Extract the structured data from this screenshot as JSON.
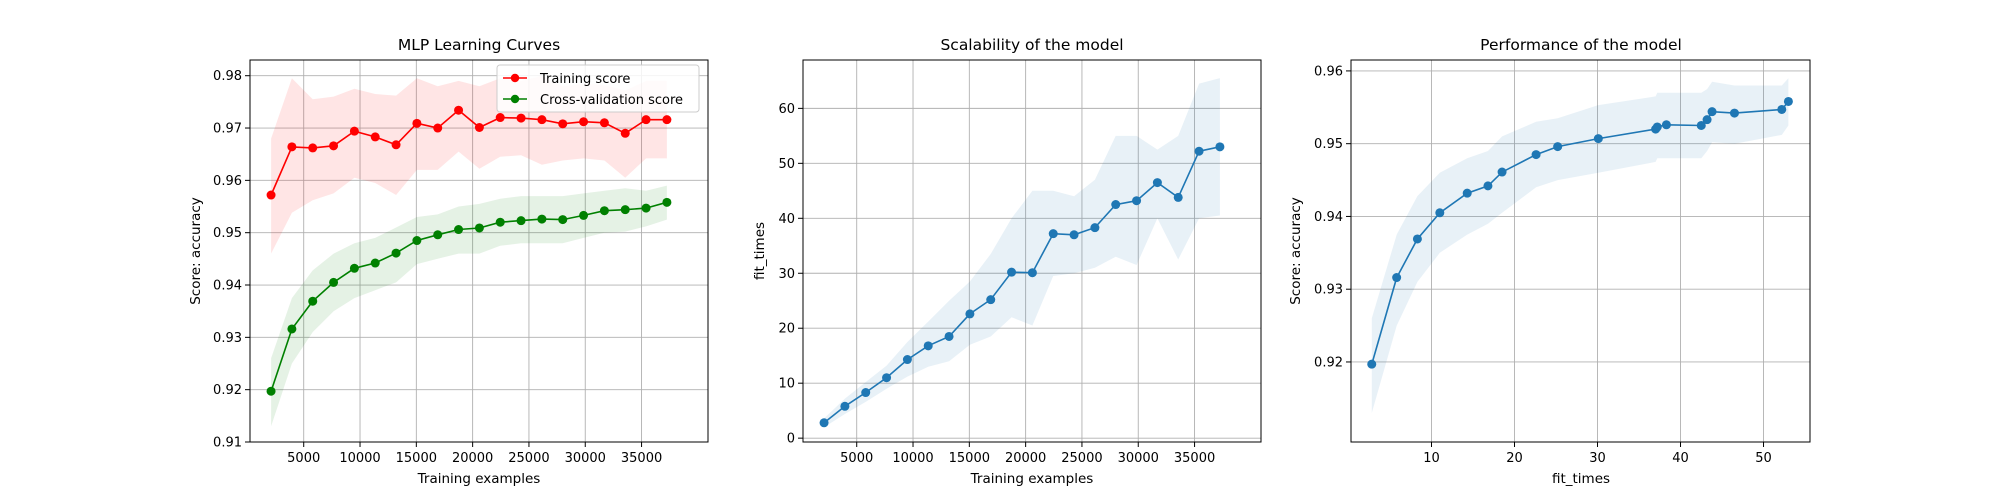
{
  "chart_data": [
    {
      "type": "line",
      "title": "MLP Learning Curves",
      "xlabel": "Training examples",
      "ylabel": "Score: accuracy",
      "xlim": [
        230,
        40900
      ],
      "ylim": [
        0.91,
        0.983
      ],
      "xticks": [
        5000,
        10000,
        15000,
        20000,
        25000,
        30000,
        35000
      ],
      "yticks": [
        0.91,
        0.92,
        0.93,
        0.94,
        0.95,
        0.96,
        0.97,
        0.98
      ],
      "ytick_decimals": 2,
      "grid": true,
      "legend": "top-right",
      "x": [
        2100,
        3950,
        5800,
        7650,
        9500,
        11350,
        13200,
        15050,
        16900,
        18750,
        20600,
        22450,
        24300,
        26150,
        28000,
        29850,
        31700,
        33550,
        35400,
        37250
      ],
      "series": [
        {
          "name": "Training score",
          "color": "#ff0000",
          "values": [
            0.9572,
            0.9664,
            0.9662,
            0.9666,
            0.9694,
            0.9683,
            0.9668,
            0.9709,
            0.97,
            0.9734,
            0.9701,
            0.972,
            0.9719,
            0.9716,
            0.9708,
            0.9712,
            0.971,
            0.969,
            0.9716,
            0.9716
          ],
          "band_upper": [
            0.968,
            0.9795,
            0.9755,
            0.976,
            0.9775,
            0.9765,
            0.9762,
            0.9795,
            0.978,
            0.979,
            0.978,
            0.9795,
            0.979,
            0.98,
            0.978,
            0.9785,
            0.9782,
            0.9772,
            0.979,
            0.979
          ],
          "band_lower": [
            0.946,
            0.9538,
            0.9562,
            0.9575,
            0.9605,
            0.9595,
            0.9572,
            0.962,
            0.962,
            0.9655,
            0.9622,
            0.9645,
            0.9648,
            0.963,
            0.9638,
            0.9642,
            0.9638,
            0.9605,
            0.9642,
            0.9642
          ]
        },
        {
          "name": "Cross-validation score",
          "color": "#008000",
          "values": [
            0.9197,
            0.9316,
            0.9369,
            0.9405,
            0.9432,
            0.9442,
            0.9461,
            0.9485,
            0.9496,
            0.9506,
            0.9509,
            0.952,
            0.9523,
            0.9526,
            0.9525,
            0.9533,
            0.9542,
            0.9544,
            0.9547,
            0.9558
          ],
          "band_upper": [
            0.926,
            0.9375,
            0.9428,
            0.946,
            0.948,
            0.949,
            0.951,
            0.953,
            0.9535,
            0.955,
            0.9555,
            0.9565,
            0.957,
            0.957,
            0.957,
            0.9575,
            0.958,
            0.9585,
            0.958,
            0.959
          ],
          "band_lower": [
            0.913,
            0.925,
            0.931,
            0.935,
            0.9375,
            0.939,
            0.9405,
            0.944,
            0.945,
            0.946,
            0.946,
            0.9475,
            0.948,
            0.948,
            0.948,
            0.949,
            0.95,
            0.9502,
            0.9512,
            0.9525
          ]
        }
      ]
    },
    {
      "type": "line",
      "title": "Scalability of the model",
      "xlabel": "Training examples",
      "ylabel": "fit_times",
      "xlim": [
        230,
        40900
      ],
      "ylim": [
        -0.7,
        68.8
      ],
      "xticks": [
        5000,
        10000,
        15000,
        20000,
        25000,
        30000,
        35000
      ],
      "yticks": [
        0,
        10,
        20,
        30,
        40,
        50,
        60
      ],
      "ytick_decimals": 0,
      "grid": true,
      "x": [
        2100,
        3950,
        5800,
        7650,
        9500,
        11350,
        13200,
        15050,
        16900,
        18750,
        20600,
        22450,
        24300,
        26150,
        28000,
        29850,
        31700,
        33550,
        35400,
        37250
      ],
      "series": [
        {
          "name": "",
          "color": "#1f77b4",
          "values": [
            2.8,
            5.8,
            8.3,
            11.0,
            14.3,
            16.8,
            18.5,
            22.6,
            25.2,
            30.2,
            30.1,
            37.2,
            37.0,
            38.3,
            42.5,
            43.2,
            46.5,
            43.8,
            52.2,
            53.0
          ],
          "band_upper": [
            3.6,
            7.2,
            10.2,
            13.2,
            17.5,
            21.2,
            25.0,
            28.5,
            33.5,
            40.0,
            45.0,
            45.0,
            44.0,
            47.0,
            55.0,
            55.0,
            52.5,
            55.0,
            64.5,
            65.5
          ],
          "band_lower": [
            2.0,
            4.4,
            6.6,
            9.0,
            11.2,
            13.0,
            14.0,
            17.0,
            18.5,
            22.0,
            20.5,
            29.5,
            30.0,
            31.0,
            33.0,
            31.5,
            40.0,
            32.5,
            40.0,
            40.5
          ]
        }
      ]
    },
    {
      "type": "line",
      "title": "Performance of the model",
      "xlabel": "fit_times",
      "ylabel": "Score: accuracy",
      "xlim": [
        0.3,
        55.6
      ],
      "ylim": [
        0.909,
        0.9615
      ],
      "xticks": [
        10,
        20,
        30,
        40,
        50
      ],
      "yticks": [
        0.92,
        0.93,
        0.94,
        0.95,
        0.96
      ],
      "ytick_decimals": 2,
      "grid": true,
      "x": [
        2.8,
        5.8,
        8.3,
        11.0,
        14.3,
        16.8,
        18.5,
        22.6,
        25.2,
        30.1,
        37.0,
        37.2,
        38.3,
        42.5,
        43.2,
        43.8,
        46.5,
        52.2,
        53.0
      ],
      "series": [
        {
          "name": "",
          "color": "#1f77b4",
          "values": [
            0.9197,
            0.9316,
            0.9369,
            0.9405,
            0.9432,
            0.9442,
            0.9461,
            0.9485,
            0.9496,
            0.9507,
            0.952,
            0.9523,
            0.9526,
            0.9525,
            0.9533,
            0.9544,
            0.9542,
            0.9547,
            0.9558
          ],
          "band_upper": [
            0.926,
            0.9375,
            0.9428,
            0.946,
            0.948,
            0.949,
            0.951,
            0.953,
            0.9535,
            0.9553,
            0.9565,
            0.957,
            0.957,
            0.957,
            0.9575,
            0.9585,
            0.958,
            0.958,
            0.959
          ],
          "band_lower": [
            0.913,
            0.925,
            0.931,
            0.935,
            0.9375,
            0.939,
            0.9405,
            0.944,
            0.945,
            0.946,
            0.9475,
            0.948,
            0.948,
            0.948,
            0.949,
            0.9502,
            0.95,
            0.9512,
            0.9525
          ]
        }
      ]
    }
  ]
}
